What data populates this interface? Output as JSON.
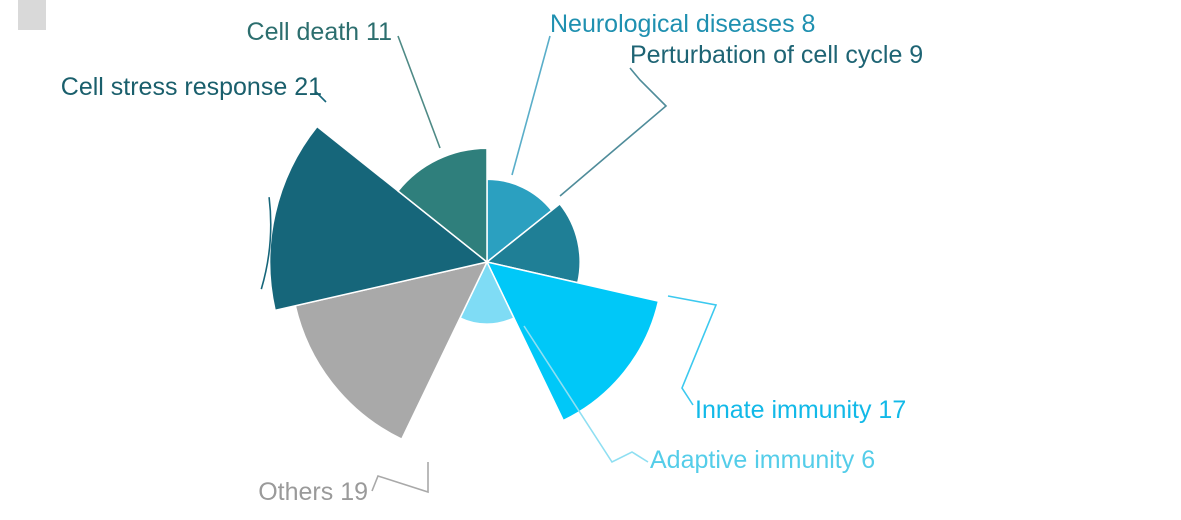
{
  "chart_data": {
    "type": "pie",
    "title": "",
    "slices": [
      {
        "name": "Neurological diseases",
        "value": 8,
        "label": "Neurological diseases 8",
        "color": "#2ba0c0",
        "text_color": "#1f90b0",
        "leader_color": "#5aaec9"
      },
      {
        "name": "Perturbation of cell cycle",
        "value": 9,
        "label": "Perturbation of cell cycle 9",
        "color": "#1f7f96",
        "text_color": "#1e6474",
        "leader_color": "#4f8c9a"
      },
      {
        "name": "Innate immunity",
        "value": 17,
        "label": "Innate immunity 17",
        "color": "#00c8f8",
        "text_color": "#12b9e8",
        "leader_color": "#3cc9ef"
      },
      {
        "name": "Adaptive immunity",
        "value": 6,
        "label": "Adaptive immunity 6",
        "color": "#7fdcf5",
        "text_color": "#54cde9",
        "leader_color": "#8fdff2"
      },
      {
        "name": "Others",
        "value": 19,
        "label": "Others 19",
        "color": "#a9a9a9",
        "text_color": "#9a9a9a",
        "leader_color": "#a9a9a9"
      },
      {
        "name": "Cell stress response",
        "value": 21,
        "label": "Cell stress response 21",
        "color": "#16667a",
        "text_color": "#1a5f6c",
        "leader_color": "#16667a"
      },
      {
        "name": "Cell death",
        "value": 11,
        "label": "Cell death 11",
        "color": "#2f7f7c",
        "text_color": "#2c6e6e",
        "leader_color": "#4f8a86"
      }
    ]
  }
}
